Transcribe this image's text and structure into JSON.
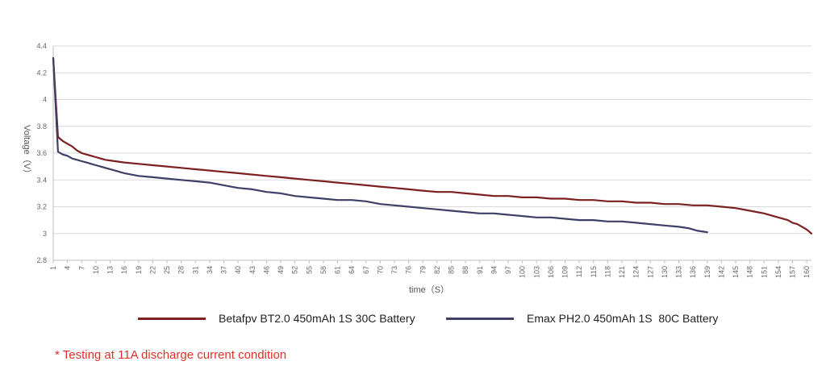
{
  "chart_data": {
    "type": "line",
    "xlabel": "time（S）",
    "ylabel": "Voltage（V）",
    "ylim": [
      2.8,
      4.4
    ],
    "yticks": [
      "2.8",
      "3",
      "3.2",
      "3.4",
      "3.6",
      "3.8",
      "4",
      "4.2",
      "4.4"
    ],
    "xlim": [
      1,
      161
    ],
    "xticks": [
      1,
      4,
      7,
      10,
      13,
      16,
      19,
      22,
      25,
      28,
      31,
      34,
      37,
      40,
      43,
      46,
      49,
      52,
      55,
      58,
      61,
      64,
      67,
      70,
      73,
      76,
      79,
      82,
      85,
      88,
      91,
      94,
      97,
      100,
      103,
      106,
      109,
      112,
      115,
      118,
      121,
      124,
      127,
      130,
      133,
      136,
      139,
      142,
      145,
      148,
      151,
      154,
      157,
      160
    ],
    "grid": "horizontal",
    "legend_position": "bottom",
    "series": [
      {
        "name": "Betafpv BT2.0 450mAh 1S 30C Battery",
        "color": "#7b1f1f",
        "x": [
          1,
          2,
          3,
          4,
          5,
          6,
          7,
          8,
          9,
          10,
          12,
          14,
          16,
          19,
          22,
          25,
          28,
          31,
          34,
          37,
          40,
          43,
          46,
          49,
          52,
          55,
          58,
          61,
          64,
          67,
          70,
          73,
          76,
          79,
          82,
          85,
          88,
          91,
          94,
          97,
          100,
          103,
          106,
          109,
          112,
          115,
          118,
          121,
          124,
          127,
          130,
          133,
          136,
          139,
          142,
          145,
          148,
          151,
          154,
          156,
          157,
          158,
          159,
          160,
          161
        ],
        "y": [
          4.31,
          3.72,
          3.69,
          3.67,
          3.65,
          3.62,
          3.6,
          3.59,
          3.58,
          3.57,
          3.55,
          3.54,
          3.53,
          3.52,
          3.51,
          3.5,
          3.49,
          3.48,
          3.47,
          3.46,
          3.45,
          3.44,
          3.43,
          3.42,
          3.41,
          3.4,
          3.39,
          3.38,
          3.37,
          3.36,
          3.35,
          3.34,
          3.33,
          3.32,
          3.31,
          3.31,
          3.3,
          3.29,
          3.28,
          3.28,
          3.27,
          3.27,
          3.26,
          3.26,
          3.25,
          3.25,
          3.24,
          3.24,
          3.23,
          3.23,
          3.22,
          3.22,
          3.21,
          3.21,
          3.2,
          3.19,
          3.17,
          3.15,
          3.12,
          3.1,
          3.08,
          3.07,
          3.05,
          3.03,
          3.0
        ]
      },
      {
        "name": "Emax PH2.0 450mAh 1S  80C Battery",
        "color": "#3e3e66",
        "x": [
          1,
          2,
          3,
          4,
          5,
          6,
          7,
          8,
          9,
          10,
          12,
          14,
          16,
          19,
          22,
          25,
          28,
          31,
          34,
          37,
          40,
          43,
          46,
          49,
          52,
          55,
          58,
          61,
          64,
          67,
          70,
          73,
          76,
          79,
          82,
          85,
          88,
          91,
          94,
          97,
          100,
          103,
          106,
          109,
          112,
          115,
          118,
          121,
          124,
          127,
          130,
          133,
          135,
          137,
          139
        ],
        "y": [
          4.31,
          3.61,
          3.59,
          3.58,
          3.56,
          3.55,
          3.54,
          3.53,
          3.52,
          3.51,
          3.49,
          3.47,
          3.45,
          3.43,
          3.42,
          3.41,
          3.4,
          3.39,
          3.38,
          3.36,
          3.34,
          3.33,
          3.31,
          3.3,
          3.28,
          3.27,
          3.26,
          3.25,
          3.25,
          3.24,
          3.22,
          3.21,
          3.2,
          3.19,
          3.18,
          3.17,
          3.16,
          3.15,
          3.15,
          3.14,
          3.13,
          3.12,
          3.12,
          3.11,
          3.1,
          3.1,
          3.09,
          3.09,
          3.08,
          3.07,
          3.06,
          3.05,
          3.04,
          3.02,
          3.01
        ]
      }
    ]
  },
  "footnote": "* Testing at 11A discharge current condition"
}
